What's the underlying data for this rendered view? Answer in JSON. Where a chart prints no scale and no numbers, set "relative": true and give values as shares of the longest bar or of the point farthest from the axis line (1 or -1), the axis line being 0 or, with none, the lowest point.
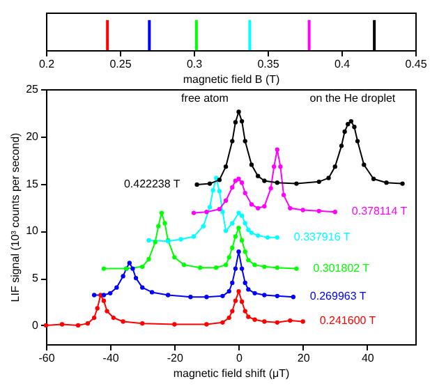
{
  "chart_data": [
    {
      "type": "bar",
      "xlabel": "magnetic field B (T)",
      "xlim": [
        0.2,
        0.45
      ],
      "xticks": [
        0.2,
        0.25,
        0.3,
        0.35,
        0.4,
        0.45
      ],
      "tick_labels": "x",
      "relative": true,
      "x": [
        0.2416,
        0.269963,
        0.301802,
        0.337916,
        0.378114,
        0.422238
      ],
      "values": [
        1,
        1,
        1,
        1,
        1,
        1
      ],
      "colors": [
        "#ff0000",
        "#0000ff",
        "#00ff00",
        "#00ffff",
        "#ff00ff",
        "#000000"
      ]
    },
    {
      "type": "line",
      "xlabel": "magnetic field shift (μT)",
      "ylabel": "LIF signal (10³ counts per second)",
      "xlim": [
        -60,
        55
      ],
      "xticks": [
        -60,
        -40,
        -20,
        0,
        20,
        40
      ],
      "ylim": [
        -2,
        25
      ],
      "yticks": [
        0,
        5,
        10,
        15,
        20,
        25
      ],
      "marker": "circle",
      "line_style": "solid",
      "annotations": [
        "free atom",
        "on the He droplet"
      ],
      "series": [
        {
          "name": "0.241600 T",
          "color": "#ff0000",
          "x": [
            -60,
            -55,
            -50,
            -47,
            -45,
            -44,
            -43,
            -42,
            -41,
            -39,
            -36,
            -30,
            -20,
            -10,
            -5,
            -3,
            -2,
            -1,
            0,
            1,
            2,
            3,
            5,
            8,
            12,
            16,
            20
          ],
          "values": [
            0,
            0.1,
            0,
            0.2,
            0.8,
            1.8,
            3.2,
            2.6,
            1.5,
            0.8,
            0.4,
            0.2,
            0.1,
            0.1,
            0.3,
            0.8,
            1.5,
            2.6,
            3.6,
            2.5,
            1.5,
            0.9,
            0.6,
            0.4,
            0.3,
            0.5,
            0.4
          ]
        },
        {
          "name": "0.269963 T",
          "color": "#0000ff",
          "x": [
            -45,
            -42,
            -40,
            -38,
            -36,
            -35,
            -34,
            -33,
            -32,
            -30,
            -27,
            -22,
            -15,
            -10,
            -5,
            -3,
            -2,
            -1,
            0,
            1,
            2,
            3,
            5,
            8,
            12,
            17
          ],
          "values": [
            3.2,
            3.2,
            3.4,
            4.0,
            5.2,
            6.0,
            6.6,
            6.0,
            5.0,
            4.0,
            3.5,
            3.2,
            3.0,
            3.0,
            3.1,
            3.6,
            4.5,
            6.0,
            7.8,
            6.0,
            4.5,
            3.8,
            3.4,
            3.2,
            3.1,
            3.0
          ]
        },
        {
          "name": "0.301802 T",
          "color": "#00ff00",
          "x": [
            -42,
            -35,
            -30,
            -28,
            -26,
            -25,
            -24,
            -23,
            -22,
            -20,
            -17,
            -12,
            -7,
            -4,
            -3,
            -2,
            -1,
            0,
            1,
            2,
            3,
            5,
            8,
            12,
            18
          ],
          "values": [
            6.0,
            6.0,
            6.2,
            7.0,
            8.8,
            10.5,
            11.9,
            10.8,
            9.0,
            7.2,
            6.4,
            6.1,
            6.1,
            6.4,
            7.2,
            8.2,
            9.4,
            10.3,
            9.0,
            7.8,
            6.9,
            6.4,
            6.2,
            6.1,
            6.0
          ]
        },
        {
          "name": "0.337916 T",
          "color": "#00ffff",
          "x": [
            -28,
            -22,
            -18,
            -14,
            -11,
            -9,
            -8,
            -7,
            -6,
            -5,
            -4,
            -2,
            0,
            1,
            2,
            3,
            4,
            6,
            9,
            12
          ],
          "values": [
            9.0,
            8.9,
            9.1,
            9.4,
            10.5,
            12.5,
            14.3,
            15.6,
            14.2,
            12.0,
            10.0,
            10.8,
            11.9,
            11.6,
            10.8,
            10.1,
            9.8,
            9.5,
            9.3,
            9.3
          ]
        },
        {
          "name": "0.378114 T",
          "color": "#ff00ff",
          "x": [
            -14,
            -10,
            -6,
            -4,
            -2,
            -1,
            0,
            1,
            2,
            4,
            6,
            8,
            10,
            11,
            12,
            13,
            14,
            16,
            20,
            25,
            30
          ],
          "values": [
            11.9,
            12.0,
            12.3,
            13.2,
            14.6,
            15.3,
            15.5,
            15.1,
            14.0,
            12.8,
            12.4,
            12.6,
            14.5,
            16.8,
            18.6,
            16.8,
            13.8,
            12.4,
            12.2,
            12.1,
            12.0
          ]
        },
        {
          "name": "0.422238 T",
          "color": "#000000",
          "x": [
            -13,
            -9,
            -6,
            -4,
            -2,
            -1,
            0,
            1,
            2,
            4,
            6,
            8,
            12,
            18,
            25,
            28,
            30,
            32,
            33,
            34,
            35,
            36,
            37,
            39,
            42,
            46,
            51
          ],
          "values": [
            14.9,
            15.0,
            15.4,
            16.8,
            19.5,
            21.5,
            22.6,
            21.6,
            19.5,
            17.0,
            15.8,
            15.3,
            15.1,
            15.0,
            15.2,
            15.6,
            16.8,
            19.0,
            20.5,
            21.3,
            21.6,
            21.0,
            19.5,
            17.0,
            15.5,
            15.1,
            15.0
          ]
        }
      ]
    }
  ]
}
